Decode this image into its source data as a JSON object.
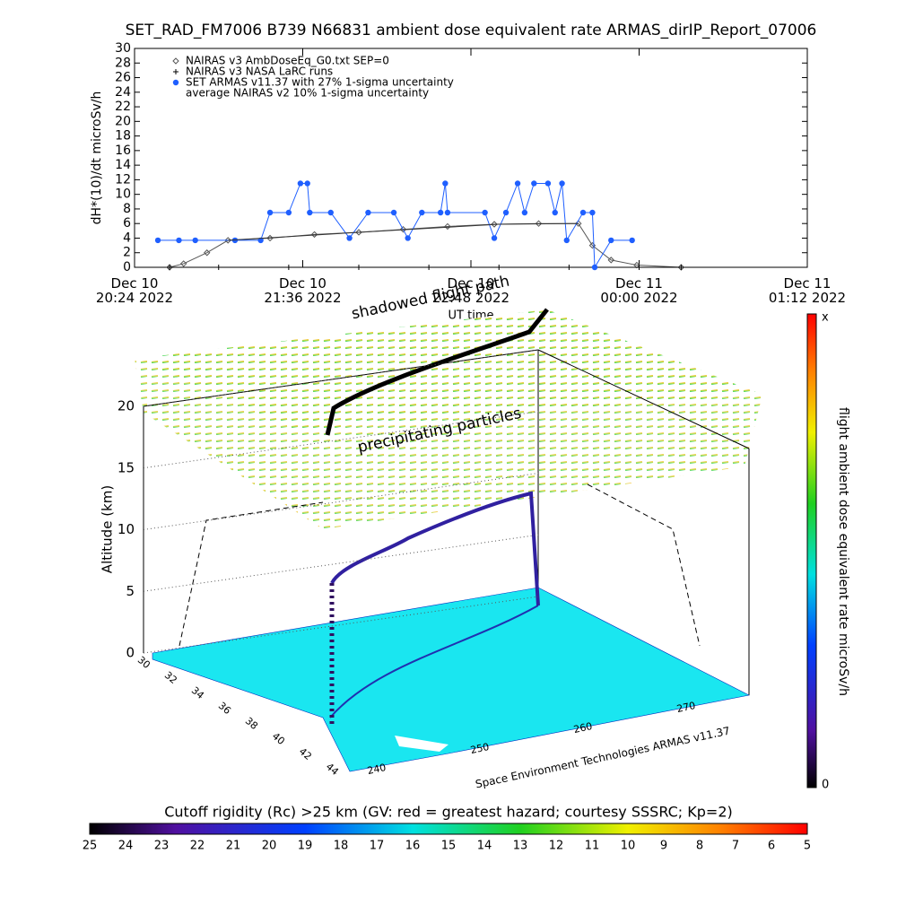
{
  "chart_data": {
    "type": "line",
    "title": "SET_RAD_FM7006  B739 N66831 ambient dose equivalent rate ARMAS_dirIP_Report_07006",
    "y_label": "dH*(10)/dt microSv/h",
    "x_label": "UT time",
    "xlim": [
      "2022-12-10T20:24",
      "2022-12-11T01:12"
    ],
    "xticks": [
      {
        "value": "2022-12-10T20:24",
        "label": "Dec 10\n20:24 2022"
      },
      {
        "value": "2022-12-10T21:36",
        "label": "Dec 10\n21:36 2022"
      },
      {
        "value": "2022-12-10T22:48",
        "label": "Dec 10\n22:48 2022"
      },
      {
        "value": "2022-12-11T00:00",
        "label": "Dec 11\n00:00 2022"
      },
      {
        "value": "2022-12-11T01:12",
        "label": "Dec 11\n01:12 2022"
      }
    ],
    "ylim": [
      0,
      30
    ],
    "yticks": [
      0,
      2,
      4,
      6,
      8,
      10,
      12,
      14,
      16,
      18,
      20,
      22,
      24,
      26,
      28,
      30
    ],
    "series": [
      {
        "name": "NAIRAS v3 AmbDoseEq_G0.txt SEP=0",
        "color": "#555555",
        "marker": "diamond",
        "x": [
          "2022-12-10T20:39",
          "2022-12-10T20:45",
          "2022-12-10T20:55",
          "2022-12-10T21:04",
          "2022-12-10T21:22",
          "2022-12-10T21:41",
          "2022-12-10T22:00",
          "2022-12-10T22:19",
          "2022-12-10T22:38",
          "2022-12-10T22:58",
          "2022-12-10T23:17",
          "2022-12-10T23:34",
          "2022-12-10T23:40",
          "2022-12-10T23:48",
          "2022-12-10T23:59",
          "2022-12-11T00:18"
        ],
        "values": [
          0,
          0.5,
          2,
          3.7,
          4,
          4.5,
          4.8,
          5.2,
          5.6,
          5.9,
          6,
          6,
          3,
          1,
          0.3,
          0
        ]
      },
      {
        "name": "NAIRAS v3 NASA LaRC runs",
        "color": "#000000",
        "marker": "plus",
        "x": [
          "2022-12-10T20:39",
          "2022-12-10T21:00",
          "2022-12-10T21:30",
          "2022-12-10T22:00",
          "2022-12-10T22:30",
          "2022-12-10T23:00",
          "2022-12-10T23:30",
          "2022-12-11T00:00",
          "2022-12-11T00:18"
        ],
        "values": [
          0,
          0,
          0,
          0,
          0,
          0,
          0,
          0,
          0
        ]
      },
      {
        "name": "SET ARMAS v11.37 with 27% 1-sigma uncertainty",
        "color": "#1f5fff",
        "marker": "dot",
        "x": [
          "2022-12-10T20:34",
          "2022-12-10T20:43",
          "2022-12-10T20:50",
          "2022-12-10T21:07",
          "2022-12-10T21:18",
          "2022-12-10T21:22",
          "2022-12-10T21:30",
          "2022-12-10T21:35",
          "2022-12-10T21:38",
          "2022-12-10T21:39",
          "2022-12-10T21:48",
          "2022-12-10T21:56",
          "2022-12-10T22:04",
          "2022-12-10T22:15",
          "2022-12-10T22:21",
          "2022-12-10T22:27",
          "2022-12-10T22:35",
          "2022-12-10T22:37",
          "2022-12-10T22:38",
          "2022-12-10T22:54",
          "2022-12-10T22:58",
          "2022-12-10T23:03",
          "2022-12-10T23:08",
          "2022-12-10T23:11",
          "2022-12-10T23:15",
          "2022-12-10T23:21",
          "2022-12-10T23:24",
          "2022-12-10T23:27",
          "2022-12-10T23:29",
          "2022-12-10T23:36",
          "2022-12-10T23:40",
          "2022-12-10T23:41",
          "2022-12-10T23:48",
          "2022-12-10T23:57"
        ],
        "values": [
          3.7,
          3.7,
          3.7,
          3.7,
          3.7,
          7.5,
          7.5,
          11.5,
          11.5,
          7.5,
          7.5,
          4,
          7.5,
          7.5,
          4,
          7.5,
          7.5,
          11.5,
          7.5,
          7.5,
          4,
          7.5,
          11.5,
          7.5,
          11.5,
          11.5,
          7.5,
          11.5,
          3.7,
          7.5,
          7.5,
          0,
          3.7,
          3.7
        ]
      },
      {
        "name": "average NAIRAS v2 10% 1-sigma uncertainty",
        "color": "#333333",
        "marker": "none",
        "x": [
          "2022-12-10T21:04",
          "2022-12-10T22:00",
          "2022-12-10T23:00",
          "2022-12-10T23:34"
        ],
        "values": [
          3.7,
          4.8,
          5.9,
          6
        ]
      }
    ]
  },
  "scene": {
    "annotations": [
      "shadowed flight path",
      "precipitating particles"
    ],
    "z_label": "Altitude (km)",
    "z_ticks": [
      "0",
      "5",
      "10",
      "15",
      "20"
    ],
    "lat_ticks": [
      "30",
      "32",
      "34",
      "36",
      "38",
      "40",
      "42",
      "44"
    ],
    "lon_ticks": [
      "240",
      "250",
      "260",
      "270"
    ],
    "credit": "Space Environment Technologies ARMAS v11.37"
  },
  "colorbars": {
    "dose": {
      "label": "flight ambient dose equivalent rate microSv/h",
      "top": "x",
      "bottom": "0"
    },
    "cutoff": {
      "title": "Cutoff rigidity (Rc) >25 km (GV: red = greatest hazard; courtesy SSSRC; Kp=2)",
      "ticks": [
        "25",
        "24",
        "23",
        "22",
        "21",
        "20",
        "19",
        "18",
        "17",
        "16",
        "15",
        "14",
        "13",
        "12",
        "11",
        "10",
        "9",
        "8",
        "7",
        "6",
        "5"
      ]
    }
  }
}
